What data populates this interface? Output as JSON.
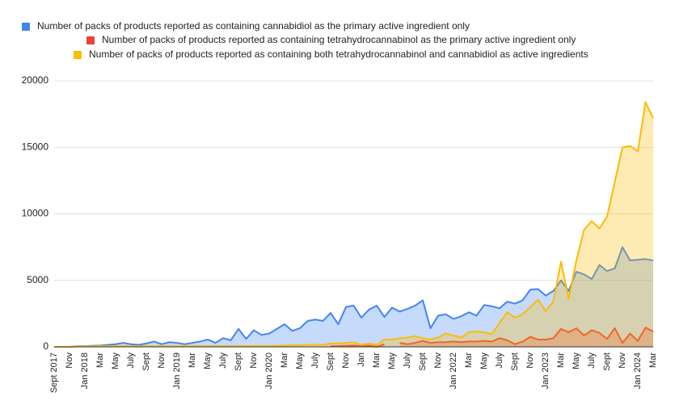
{
  "chart_data": {
    "type": "area",
    "legend": "top",
    "grid": true,
    "categories": [
      "Sept 2017",
      null,
      "Nov",
      null,
      "Jan 2018",
      null,
      "Mar",
      null,
      "May",
      null,
      "July",
      null,
      "Sept",
      null,
      "Nov",
      null,
      "Jan 2019",
      null,
      "Mar",
      null,
      "May",
      null,
      "July",
      null,
      "Sept",
      null,
      "Nov",
      null,
      "Jan 2020",
      null,
      "Mar",
      null,
      "May",
      null,
      "July",
      null,
      "Sept",
      null,
      "Nov",
      null,
      "Jan",
      null,
      "Mar",
      null,
      "May",
      null,
      "July",
      null,
      "Sept",
      null,
      "Nov",
      null,
      "Jan 2022",
      null,
      "Mar",
      null,
      "May",
      null,
      "July",
      null,
      "Sept",
      null,
      "Nov",
      null,
      "Jan 2023",
      null,
      "Mar",
      null,
      "May",
      null,
      "July",
      null,
      "Sept",
      null,
      "Nov",
      null,
      "Jan 2024",
      null,
      "Mar"
    ],
    "series": [
      {
        "name": "Number of packs of products reported as containing cannabidiol as the primary active ingredient only",
        "color": "#4285f4",
        "values": [
          0,
          0,
          0,
          50,
          50,
          80,
          100,
          150,
          200,
          300,
          200,
          150,
          250,
          400,
          200,
          350,
          300,
          200,
          300,
          400,
          550,
          300,
          650,
          500,
          1350,
          600,
          1250,
          900,
          1000,
          1350,
          1700,
          1200,
          1400,
          1950,
          2050,
          1950,
          2550,
          1700,
          3000,
          3100,
          2200,
          2800,
          3100,
          2250,
          2950,
          2650,
          2850,
          3100,
          3500,
          1400,
          2350,
          2450,
          2100,
          2300,
          2600,
          2350,
          3150,
          3050,
          2900,
          3400,
          3250,
          3500,
          4300,
          4350,
          3850,
          4200,
          5000,
          4200,
          5650,
          5450,
          5100,
          6150,
          5700,
          5900,
          7500,
          6500,
          6550,
          6600,
          6500
        ]
      },
      {
        "name": "Number of packs of products reported as containing tetrahydrocannabinol as the primary active ingredient only",
        "color": "#ea4335",
        "values": [
          null,
          null,
          null,
          null,
          null,
          null,
          null,
          null,
          null,
          null,
          null,
          null,
          null,
          null,
          null,
          null,
          null,
          null,
          null,
          null,
          null,
          null,
          null,
          null,
          null,
          null,
          null,
          null,
          null,
          null,
          null,
          null,
          null,
          null,
          null,
          null,
          50,
          50,
          80,
          100,
          50,
          100,
          0,
          200,
          null,
          300,
          200,
          300,
          450,
          300,
          350,
          350,
          400,
          350,
          400,
          400,
          450,
          400,
          650,
          500,
          200,
          400,
          750,
          550,
          550,
          650,
          1350,
          1100,
          1400,
          850,
          1250,
          1050,
          600,
          1400,
          300,
          1000,
          450,
          1450,
          1150
        ]
      },
      {
        "name": "Number of packs of products reported as containing both tetrahydrocannabinol and cannabidiol as active ingredients",
        "color": "#fbbc04",
        "values": [
          0,
          0,
          0,
          30,
          40,
          40,
          50,
          50,
          50,
          50,
          50,
          50,
          50,
          50,
          50,
          50,
          50,
          50,
          50,
          50,
          50,
          50,
          50,
          50,
          60,
          60,
          60,
          60,
          60,
          80,
          100,
          120,
          120,
          150,
          150,
          150,
          250,
          250,
          300,
          350,
          150,
          250,
          150,
          550,
          550,
          650,
          700,
          800,
          650,
          550,
          700,
          1000,
          850,
          700,
          1100,
          1150,
          1100,
          950,
          1800,
          2600,
          2200,
          2450,
          3000,
          3550,
          2700,
          3400,
          6400,
          3600,
          6500,
          8800,
          9450,
          8900,
          9800,
          12400,
          15000,
          15100,
          14700,
          18400,
          17200
        ]
      }
    ],
    "ylim": [
      0,
      20000
    ],
    "yticks": [
      0,
      5000,
      10000,
      15000,
      20000
    ]
  }
}
